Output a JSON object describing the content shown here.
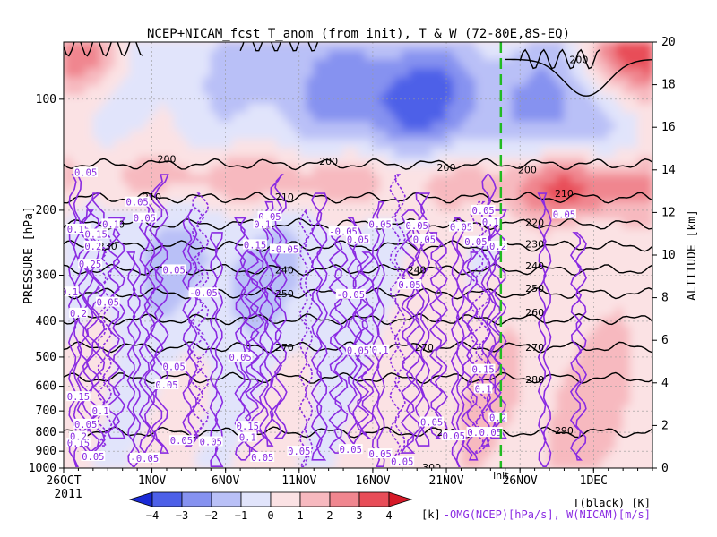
{
  "chart_data": {
    "type": "heatmap",
    "title": "NCEP+NICAM_fcst T_anom (from init), T & W  (72-80E,8S-EQ)",
    "ylabel": "PRESSURE [hPa]",
    "y2label": "ALTITUDE [km]",
    "x_ticks": [
      {
        "day": 0,
        "label": "26OCT"
      },
      {
        "day": 6,
        "label": "1NOV"
      },
      {
        "day": 11,
        "label": "6NOV"
      },
      {
        "day": 16,
        "label": "11NOV"
      },
      {
        "day": 21,
        "label": "16NOV"
      },
      {
        "day": 26,
        "label": "21NOV"
      },
      {
        "day": 31,
        "label": "26NOV"
      },
      {
        "day": 36,
        "label": "1DEC"
      }
    ],
    "x_year_label": "2011",
    "xlim_days": [
      0,
      40
    ],
    "p_ticks": [
      100,
      200,
      300,
      400,
      500,
      600,
      700,
      800,
      900,
      1000
    ],
    "p_range": [
      70,
      1000
    ],
    "alt_ticks": [
      0,
      2,
      4,
      6,
      8,
      10,
      12,
      14,
      16,
      18,
      20
    ],
    "init_marker": {
      "day": 29.7,
      "label": "init",
      "color": "#22bb22"
    },
    "colorbar": {
      "levels": [
        -4,
        -3,
        -2,
        -1,
        0,
        1,
        2,
        3,
        4
      ],
      "colors": [
        "#1a2ad6",
        "#4d60e8",
        "#8692f0",
        "#b9c0f7",
        "#e1e4fb",
        "#fbe2e4",
        "#f7b9bf",
        "#f0868f",
        "#e84d58",
        "#d61a28"
      ],
      "unit_label": "[k]"
    },
    "temperature_contours": [
      {
        "value": 200,
        "p": 150
      },
      {
        "value": 210,
        "p": 185
      },
      {
        "value": 220,
        "p": 218
      },
      {
        "value": 230,
        "p": 250
      },
      {
        "value": 240,
        "p": 290
      },
      {
        "value": 250,
        "p": 336
      },
      {
        "value": 260,
        "p": 395
      },
      {
        "value": 270,
        "p": 470
      },
      {
        "value": 280,
        "p": 570
      },
      {
        "value": 290,
        "p": 800
      }
    ],
    "temperature_contour_labels": [
      {
        "text": "200",
        "day": 7.0,
        "p": 145
      },
      {
        "text": "200",
        "day": 18.0,
        "p": 147
      },
      {
        "text": "200",
        "day": 26.0,
        "p": 153
      },
      {
        "text": "200",
        "day": 31.5,
        "p": 155
      },
      {
        "text": "200",
        "day": 35.0,
        "p": 78
      },
      {
        "text": "210",
        "day": 6.0,
        "p": 184
      },
      {
        "text": "210",
        "day": 15.0,
        "p": 184
      },
      {
        "text": "210",
        "day": 34.0,
        "p": 180
      },
      {
        "text": "220",
        "day": 3.5,
        "p": 218
      },
      {
        "text": "220",
        "day": 32.0,
        "p": 216
      },
      {
        "text": "230",
        "day": 3.0,
        "p": 250
      },
      {
        "text": "230",
        "day": 32.0,
        "p": 247
      },
      {
        "text": "240",
        "day": 15.0,
        "p": 290
      },
      {
        "text": "240",
        "day": 24.0,
        "p": 290
      },
      {
        "text": "240",
        "day": 32.0,
        "p": 283
      },
      {
        "text": "250",
        "day": 15.0,
        "p": 336
      },
      {
        "text": "250",
        "day": 32.0,
        "p": 325
      },
      {
        "text": "260",
        "day": 32.0,
        "p": 378
      },
      {
        "text": "270",
        "day": 15.0,
        "p": 470
      },
      {
        "text": "270",
        "day": 24.5,
        "p": 470
      },
      {
        "text": "270",
        "day": 32.0,
        "p": 470
      },
      {
        "text": "280",
        "day": 32.0,
        "p": 575
      },
      {
        "text": "290",
        "day": 26.0,
        "p": 800
      },
      {
        "text": "290",
        "day": 34.0,
        "p": 790
      },
      {
        "text": "300",
        "day": 25.0,
        "p": 995
      }
    ],
    "omega_labels": [
      {
        "text": "0.05",
        "day": 1.5,
        "p": 158
      },
      {
        "text": "0.05",
        "day": 5.0,
        "p": 190
      },
      {
        "text": "0.05",
        "day": 5.5,
        "p": 210
      },
      {
        "text": "0.15",
        "day": 1.0,
        "p": 225
      },
      {
        "text": "0.1",
        "day": 3.2,
        "p": 218
      },
      {
        "text": "0.15",
        "day": 2.2,
        "p": 232
      },
      {
        "text": "0.2",
        "day": 2.0,
        "p": 250
      },
      {
        "text": "0.25",
        "day": 1.8,
        "p": 280
      },
      {
        "text": "0.05",
        "day": 7.5,
        "p": 290
      },
      {
        "text": "-0.05",
        "day": 9.5,
        "p": 335
      },
      {
        "text": "0.1",
        "day": 0.4,
        "p": 333
      },
      {
        "text": "0.2",
        "day": 1.0,
        "p": 380
      },
      {
        "text": "0.05",
        "day": 3.0,
        "p": 355
      },
      {
        "text": "0.05",
        "day": 12.0,
        "p": 500
      },
      {
        "text": "0.05",
        "day": 7.5,
        "p": 530
      },
      {
        "text": "0.05",
        "day": 7.0,
        "p": 595
      },
      {
        "text": "0.05",
        "day": 14.0,
        "p": 208
      },
      {
        "text": "0.1",
        "day": 13.5,
        "p": 218
      },
      {
        "text": "0.15",
        "day": 13.0,
        "p": 248
      },
      {
        "text": "-0.05",
        "day": 15.0,
        "p": 255
      },
      {
        "text": "-0.05",
        "day": 19.0,
        "p": 228
      },
      {
        "text": "0.05",
        "day": 20.0,
        "p": 240
      },
      {
        "text": "0.05",
        "day": 21.5,
        "p": 218
      },
      {
        "text": "0.05",
        "day": 24.0,
        "p": 220
      },
      {
        "text": "0.05",
        "day": 24.5,
        "p": 240
      },
      {
        "text": "0.05",
        "day": 27.0,
        "p": 222
      },
      {
        "text": "0.05",
        "day": 23.5,
        "p": 318
      },
      {
        "text": "-0.05",
        "day": 19.5,
        "p": 338
      },
      {
        "text": "0.1",
        "day": 21.5,
        "p": 478
      },
      {
        "text": "0.05",
        "day": 20.0,
        "p": 480
      },
      {
        "text": "0.05",
        "day": 28.5,
        "p": 200
      },
      {
        "text": "0.1",
        "day": 29.0,
        "p": 215
      },
      {
        "text": "0.05",
        "day": 28.0,
        "p": 243
      },
      {
        "text": "0.2",
        "day": 29.5,
        "p": 250
      },
      {
        "text": "0.05",
        "day": 34.0,
        "p": 205
      },
      {
        "text": "0.15",
        "day": 28.5,
        "p": 540
      },
      {
        "text": "0.1",
        "day": 28.5,
        "p": 610
      },
      {
        "text": "0.2",
        "day": 29.5,
        "p": 730
      },
      {
        "text": "0.05",
        "day": 25.0,
        "p": 750
      },
      {
        "text": "0.1",
        "day": 28.0,
        "p": 800
      },
      {
        "text": "0.05",
        "day": 29.0,
        "p": 800
      },
      {
        "text": "0.05",
        "day": 26.5,
        "p": 818
      },
      {
        "text": "0.15",
        "day": 1.0,
        "p": 640
      },
      {
        "text": "0.1",
        "day": 2.5,
        "p": 700
      },
      {
        "text": "0.15",
        "day": 12.5,
        "p": 770
      },
      {
        "text": "0.1",
        "day": 12.5,
        "p": 825
      },
      {
        "text": "0.05",
        "day": 1.5,
        "p": 760
      },
      {
        "text": "0.15",
        "day": 1.0,
        "p": 855
      },
      {
        "text": "0.2",
        "day": 1.0,
        "p": 820
      },
      {
        "text": "0.05",
        "day": 2.0,
        "p": 930
      },
      {
        "text": "-0.05",
        "day": 5.5,
        "p": 940
      },
      {
        "text": "0.05",
        "day": 8.0,
        "p": 842
      },
      {
        "text": "0.05",
        "day": 10.0,
        "p": 848
      },
      {
        "text": "0.05",
        "day": 13.5,
        "p": 935
      },
      {
        "text": "0.05",
        "day": 16.0,
        "p": 900
      },
      {
        "text": "0.05",
        "day": 19.5,
        "p": 890
      },
      {
        "text": "0.05",
        "day": 21.5,
        "p": 915
      },
      {
        "text": "0.05",
        "day": 23.0,
        "p": 960
      }
    ],
    "footer": {
      "left": "T(black) [K]",
      "right": "-OMG(NCEP)[hPa/s], W(NICAM)[m/s]"
    }
  }
}
